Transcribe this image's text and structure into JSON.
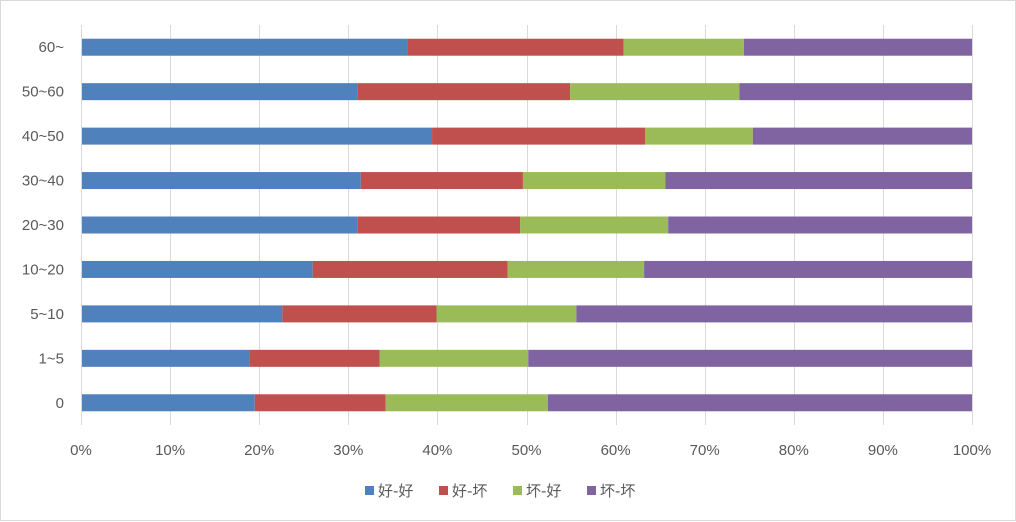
{
  "chart_data": {
    "type": "bar",
    "orientation": "horizontal",
    "stacked": true,
    "percent_stacked": true,
    "title": "",
    "xlabel": "",
    "ylabel": "",
    "xlim": [
      0,
      100
    ],
    "x_ticks": [
      "0%",
      "10%",
      "20%",
      "30%",
      "40%",
      "50%",
      "60%",
      "70%",
      "80%",
      "90%",
      "100%"
    ],
    "grid": true,
    "legend_position": "bottom",
    "categories": [
      "0",
      "1~5",
      "5~10",
      "10~20",
      "20~30",
      "30~40",
      "40~50",
      "50~60",
      "60~"
    ],
    "series": [
      {
        "name": "好-好",
        "color": "#4f81bd",
        "values": [
          19.5,
          18.9,
          22.6,
          26.0,
          31.0,
          31.4,
          39.4,
          31.0,
          36.6
        ]
      },
      {
        "name": "好-坏",
        "color": "#c0504d",
        "values": [
          14.7,
          14.6,
          17.3,
          21.9,
          18.3,
          18.2,
          23.9,
          23.9,
          24.3
        ]
      },
      {
        "name": "坏-好",
        "color": "#9bbb59",
        "values": [
          18.2,
          16.7,
          15.7,
          15.3,
          16.6,
          16.0,
          12.1,
          19.0,
          13.5
        ]
      },
      {
        "name": "坏-坏",
        "color": "#8064a2",
        "values": [
          47.6,
          49.8,
          44.4,
          36.8,
          34.1,
          34.4,
          24.6,
          26.1,
          25.6
        ]
      }
    ]
  }
}
